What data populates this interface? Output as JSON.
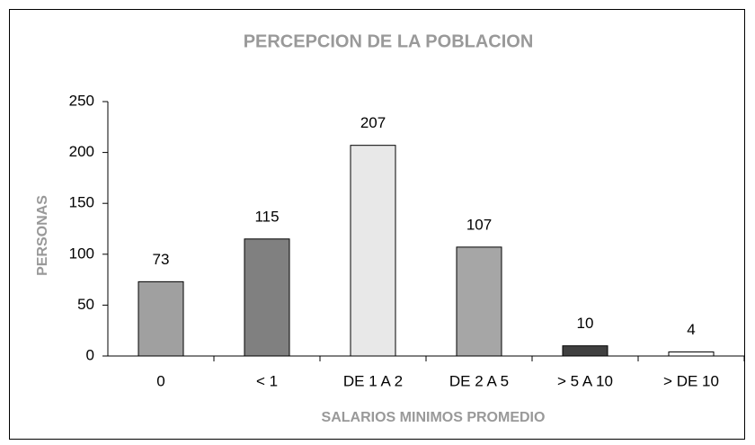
{
  "chart_data": {
    "type": "bar",
    "title": "PERCEPCION DE LA POBLACION",
    "x_label": "SALARIOS MINIMOS PROMEDIO",
    "y_label": "PERSONAS",
    "categories": [
      "0",
      "< 1",
      "DE 1 A 2",
      "DE 2 A 5",
      "> 5 A 10",
      "> DE 10"
    ],
    "values": [
      73,
      115,
      207,
      107,
      10,
      4
    ],
    "colors": [
      "#a0a0a0",
      "#808080",
      "#e8e8e8",
      "#a6a6a6",
      "#404040",
      "#ffffff"
    ],
    "ylim": [
      0,
      250
    ],
    "yticks": [
      0,
      50,
      100,
      150,
      200,
      250
    ],
    "grid": false
  }
}
